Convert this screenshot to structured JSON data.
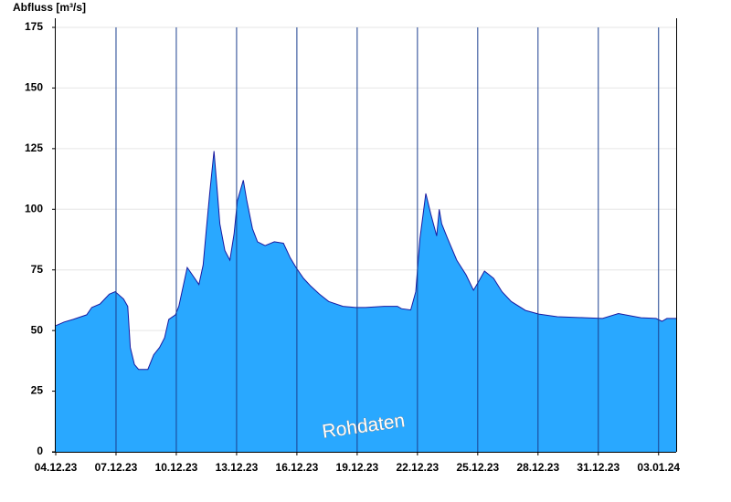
{
  "chart_data": {
    "type": "area",
    "title": "Abfluss [m³/s]",
    "annotation": "Rohdaten",
    "color": "#29a8ff",
    "line_color": "#1a1aa0",
    "grid": true,
    "x": [
      "2023-12-04T00:00",
      "2023-12-04T10:00",
      "2023-12-04T21:00",
      "2023-12-05T13:00",
      "2023-12-05T19:00",
      "2023-12-06T05:00",
      "2023-12-06T16:00",
      "2023-12-06T23:00",
      "2023-12-07T09:00",
      "2023-12-07T14:00",
      "2023-12-07T17:00",
      "2023-12-07T22:00",
      "2023-12-08T03:00",
      "2023-12-08T14:00",
      "2023-12-08T21:00",
      "2023-12-09T04:00",
      "2023-12-09T10:00",
      "2023-12-09T15:00",
      "2023-12-09T23:00",
      "2023-12-10T03:00",
      "2023-12-10T08:00",
      "2023-12-10T13:00",
      "2023-12-10T19:00",
      "2023-12-11T03:00",
      "2023-12-11T08:00",
      "2023-12-11T12:00",
      "2023-12-11T16:00",
      "2023-12-11T21:00",
      "2023-12-12T01:00",
      "2023-12-12T04:00",
      "2023-12-12T10:00",
      "2023-12-12T16:00",
      "2023-12-12T21:00",
      "2023-12-13T01:00",
      "2023-12-13T08:00",
      "2023-12-13T12:00",
      "2023-12-13T19:00",
      "2023-12-14T01:00",
      "2023-12-14T10:00",
      "2023-12-14T21:00",
      "2023-12-15T08:00",
      "2023-12-15T16:00",
      "2023-12-15T23:00",
      "2023-12-16T08:00",
      "2023-12-16T16:00",
      "2023-12-17T03:00",
      "2023-12-17T14:00",
      "2023-12-18T07:00",
      "2023-12-18T22:00",
      "2023-12-19T10:00",
      "2023-12-20T08:00",
      "2023-12-21T00:00",
      "2023-12-21T05:00",
      "2023-12-21T16:00",
      "2023-12-21T22:00",
      "2023-12-22T03:00",
      "2023-12-22T10:00",
      "2023-12-22T16:00",
      "2023-12-22T23:00",
      "2023-12-23T02:00",
      "2023-12-23T05:00",
      "2023-12-23T12:00",
      "2023-12-23T23:00",
      "2023-12-24T10:00",
      "2023-12-24T19:00",
      "2023-12-24T23:00",
      "2023-12-25T08:00",
      "2023-12-25T19:00",
      "2023-12-26T05:00",
      "2023-12-26T16:00",
      "2023-12-27T09:00",
      "2023-12-28T01:00",
      "2023-12-28T23:00",
      "2023-12-30T08:00",
      "2023-12-31T05:00",
      "2024-01-01T00:00",
      "2024-01-01T16:00",
      "2024-01-02T03:00",
      "2024-01-02T21:00",
      "2024-01-03T04:00",
      "2024-01-03T10:00",
      "2024-01-03T21:00"
    ],
    "values": [
      52,
      53.5,
      54.6,
      56.5,
      59.5,
      61,
      65,
      66,
      63,
      60,
      43,
      36,
      34,
      34,
      40,
      43,
      47,
      54.6,
      56.5,
      60,
      68,
      76,
      73,
      69,
      77,
      92,
      107,
      124,
      107,
      94,
      83,
      79,
      90,
      103.5,
      112,
      104,
      92,
      86.6,
      85,
      86.6,
      86,
      80,
      76,
      71.5,
      68.5,
      65,
      62,
      60,
      59.5,
      59.5,
      60,
      60,
      59,
      58.5,
      66,
      88,
      106.5,
      98,
      89,
      100,
      94,
      88,
      79,
      73,
      66.6,
      69,
      74.5,
      71.5,
      66,
      62,
      58.3,
      56.8,
      55.7,
      55.3,
      55,
      57,
      56,
      55.3,
      55,
      53.8,
      55,
      55
    ],
    "xlim": [
      "2023-12-04T00:00",
      "2024-01-03T21:00"
    ],
    "xticks": [
      {
        "value": "2023-12-04T00:00",
        "label": "04.12.23"
      },
      {
        "value": "2023-12-07T00:00",
        "label": "07.12.23"
      },
      {
        "value": "2023-12-10T00:00",
        "label": "10.12.23"
      },
      {
        "value": "2023-12-13T00:00",
        "label": "13.12.23"
      },
      {
        "value": "2023-12-16T00:00",
        "label": "16.12.23"
      },
      {
        "value": "2023-12-19T00:00",
        "label": "19.12.23"
      },
      {
        "value": "2023-12-22T00:00",
        "label": "22.12.23"
      },
      {
        "value": "2023-12-25T00:00",
        "label": "25.12.23"
      },
      {
        "value": "2023-12-28T00:00",
        "label": "28.12.23"
      },
      {
        "value": "2023-12-31T00:00",
        "label": "31.12.23"
      },
      {
        "value": "2024-01-03T00:00",
        "label": "03.01.24"
      }
    ],
    "ylim": [
      0,
      175
    ],
    "yticks": [
      0,
      25,
      50,
      75,
      100,
      125,
      150,
      175
    ]
  }
}
